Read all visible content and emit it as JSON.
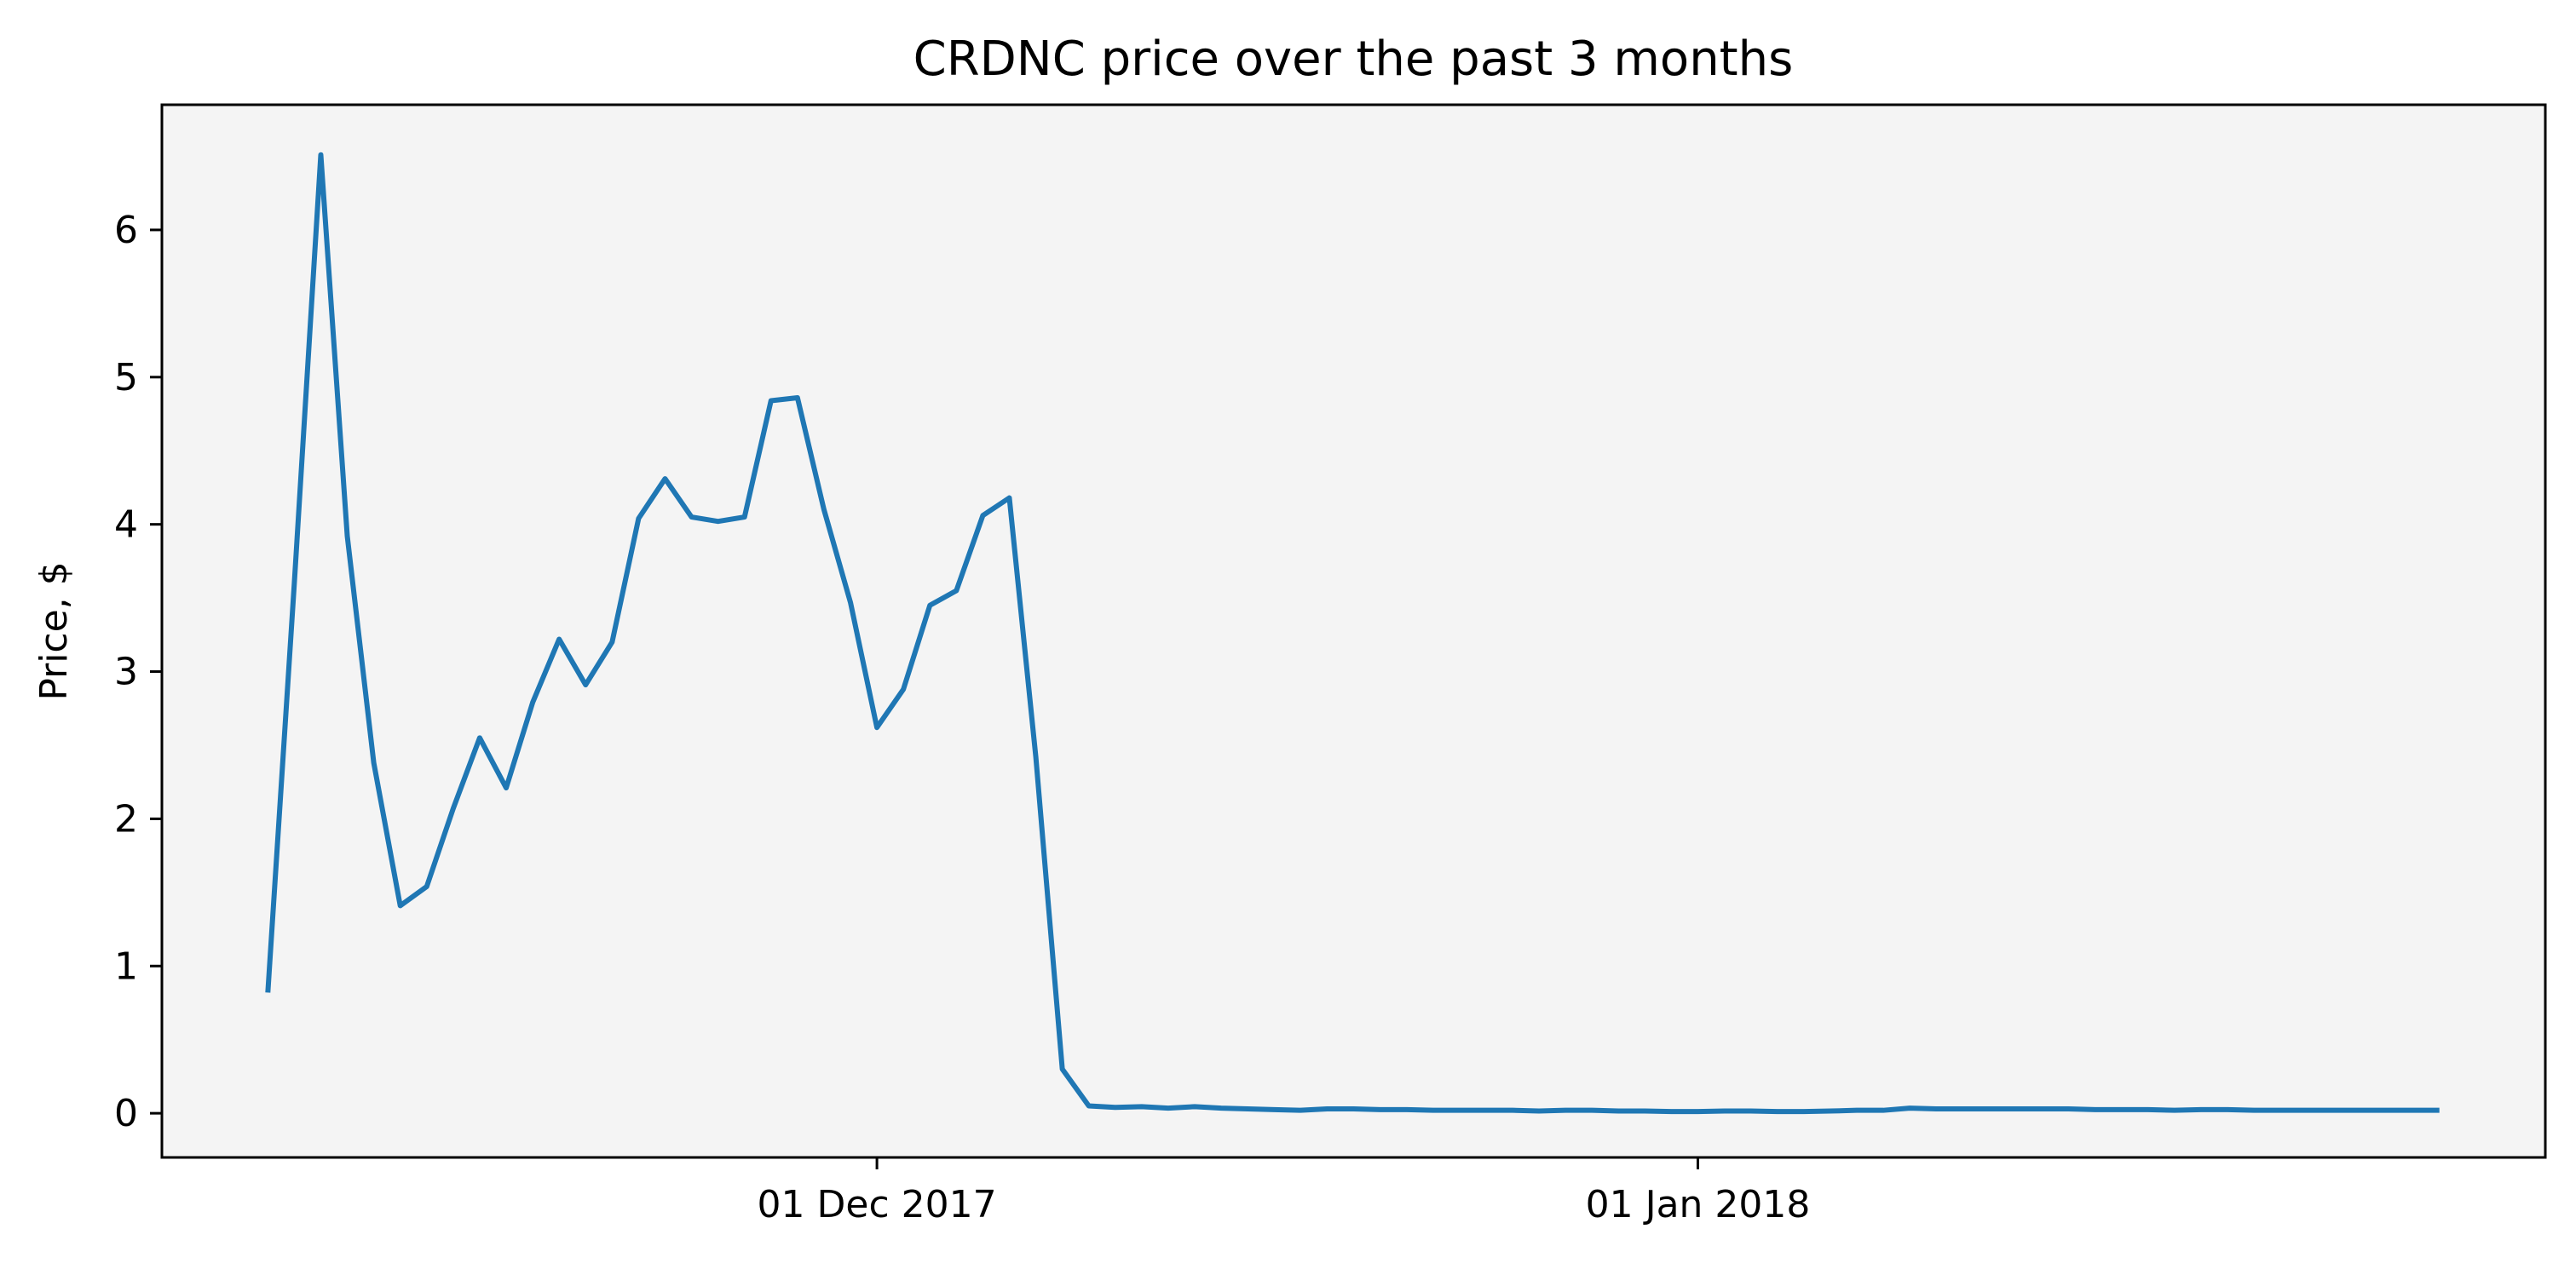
{
  "chart_data": {
    "type": "line",
    "title": "CRDNC price over the past 3 months",
    "xlabel": "",
    "ylabel": "Price, $",
    "xlim": [
      "2017-11-04",
      "2018-02-02"
    ],
    "ylim": [
      -0.3,
      6.85
    ],
    "grid": false,
    "legend": "none",
    "x_ticks": [
      {
        "date": "2017-12-01",
        "label": "01 Dec 2017"
      },
      {
        "date": "2018-01-01",
        "label": "01 Jan 2018"
      }
    ],
    "y_ticks": [
      0,
      1,
      2,
      3,
      4,
      5,
      6
    ],
    "colors": {
      "background": "#f4f4f4",
      "line": "#1f77b4",
      "axes": "#000000"
    },
    "series": [
      {
        "x": [
          "2017-11-08",
          "2017-11-09",
          "2017-11-10",
          "2017-11-11",
          "2017-11-12",
          "2017-11-13",
          "2017-11-14",
          "2017-11-15",
          "2017-11-16",
          "2017-11-17",
          "2017-11-18",
          "2017-11-19",
          "2017-11-20",
          "2017-11-21",
          "2017-11-22",
          "2017-11-23",
          "2017-11-24",
          "2017-11-25",
          "2017-11-26",
          "2017-11-27",
          "2017-11-28",
          "2017-11-29",
          "2017-11-30",
          "2017-12-01",
          "2017-12-02",
          "2017-12-03",
          "2017-12-04",
          "2017-12-05",
          "2017-12-06",
          "2017-12-07",
          "2017-12-08",
          "2017-12-09",
          "2017-12-10",
          "2017-12-11",
          "2017-12-12",
          "2017-12-13",
          "2017-12-14",
          "2017-12-15",
          "2017-12-16",
          "2017-12-17",
          "2017-12-18",
          "2017-12-19",
          "2017-12-20",
          "2017-12-21",
          "2017-12-22",
          "2017-12-23",
          "2017-12-24",
          "2017-12-25",
          "2017-12-26",
          "2017-12-27",
          "2017-12-28",
          "2017-12-29",
          "2017-12-30",
          "2017-12-31",
          "2018-01-01",
          "2018-01-02",
          "2018-01-03",
          "2018-01-04",
          "2018-01-05",
          "2018-01-06",
          "2018-01-07",
          "2018-01-08",
          "2018-01-09",
          "2018-01-10",
          "2018-01-11",
          "2018-01-12",
          "2018-01-13",
          "2018-01-14",
          "2018-01-15",
          "2018-01-16",
          "2018-01-17",
          "2018-01-18",
          "2018-01-19",
          "2018-01-20",
          "2018-01-21",
          "2018-01-22",
          "2018-01-23",
          "2018-01-24",
          "2018-01-25",
          "2018-01-26",
          "2018-01-27",
          "2018-01-28",
          "2018-01-29"
        ],
        "values": [
          0.82,
          3.6,
          6.51,
          3.92,
          2.38,
          1.41,
          1.54,
          2.07,
          2.55,
          2.21,
          2.79,
          3.22,
          2.91,
          3.2,
          4.04,
          4.31,
          4.05,
          4.02,
          4.05,
          4.84,
          4.86,
          4.1,
          3.47,
          2.62,
          2.88,
          3.45,
          3.55,
          4.06,
          4.18,
          2.42,
          0.3,
          0.05,
          0.04,
          0.045,
          0.035,
          0.045,
          0.035,
          0.03,
          0.025,
          0.02,
          0.03,
          0.03,
          0.025,
          0.025,
          0.02,
          0.02,
          0.02,
          0.02,
          0.015,
          0.02,
          0.02,
          0.015,
          0.015,
          0.012,
          0.012,
          0.015,
          0.015,
          0.012,
          0.012,
          0.015,
          0.02,
          0.02,
          0.035,
          0.03,
          0.03,
          0.03,
          0.03,
          0.03,
          0.03,
          0.025,
          0.025,
          0.025,
          0.02,
          0.025,
          0.025,
          0.02,
          0.02,
          0.02,
          0.02,
          0.02,
          0.02,
          0.02,
          0.02
        ]
      }
    ]
  }
}
